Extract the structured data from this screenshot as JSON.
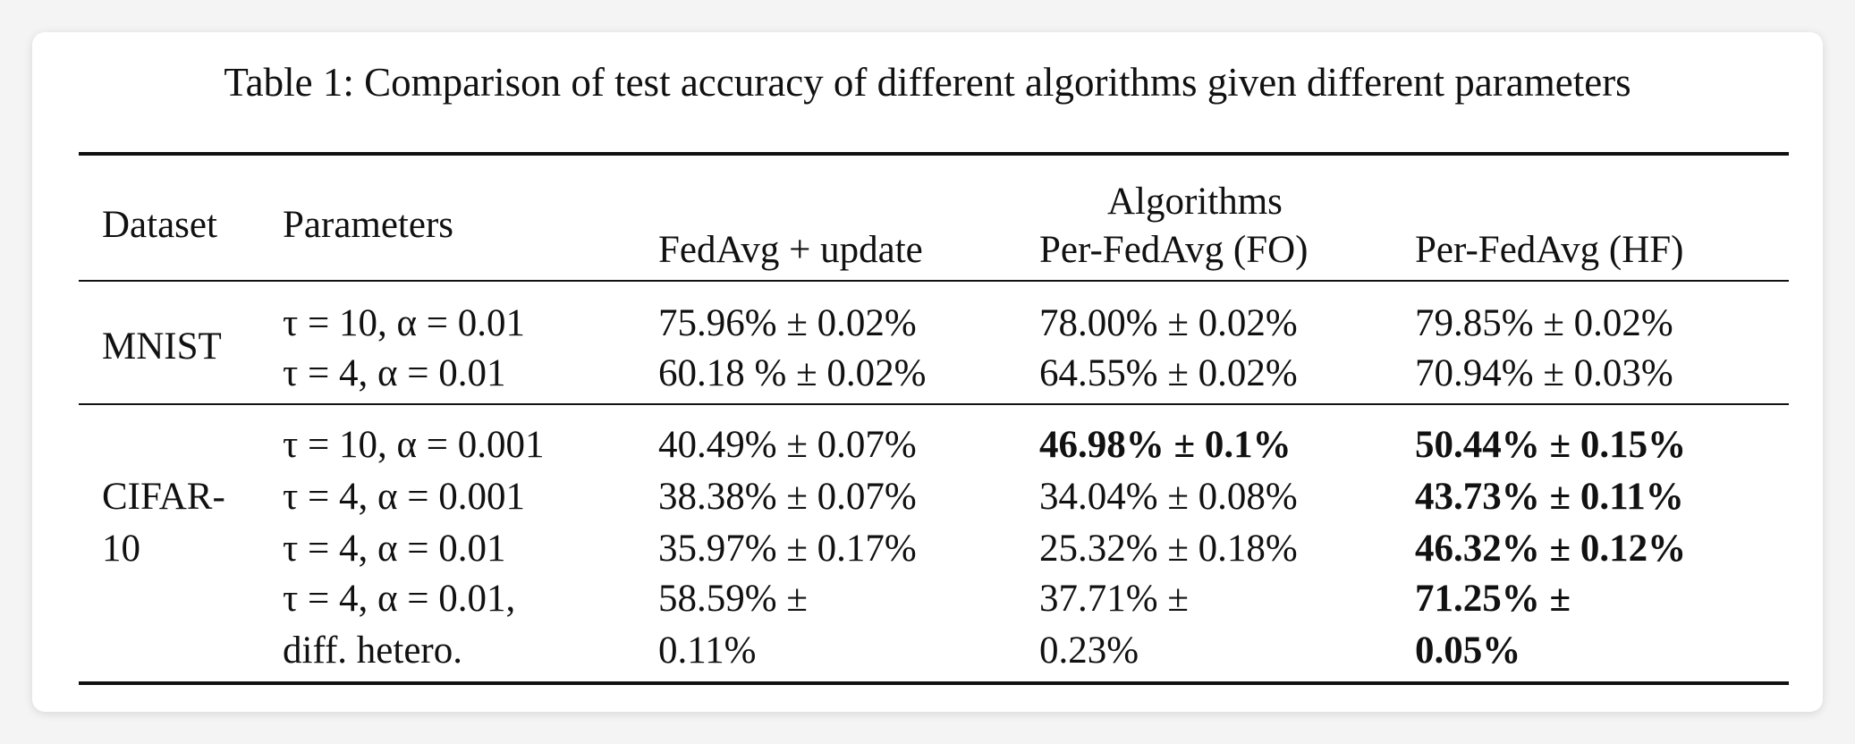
{
  "caption": "Table 1: Comparison of test accuracy of different algorithms given different parameters",
  "header": {
    "dataset": "Dataset",
    "parameters": "Parameters",
    "group": "Algorithms",
    "algorithms": [
      "FedAvg + update",
      "Per-FedAvg (FO)",
      "Per-FedAvg (HF)"
    ]
  },
  "mnist": {
    "dataset_label": "MNIST",
    "rows": [
      {
        "params": "τ = 10, α = 0.01",
        "fedavg": "75.96% ± 0.02%",
        "fo": "78.00% ± 0.02%",
        "hf": "79.85% ± 0.02%"
      },
      {
        "params": "τ = 4, α = 0.01",
        "fedavg": "60.18 % ± 0.02%",
        "fo": "64.55% ± 0.02%",
        "hf": "70.94% ± 0.03%"
      }
    ]
  },
  "cifar": {
    "dataset_label_line1": "CIFAR-",
    "dataset_label_line2": "10",
    "rows": [
      {
        "params": "τ = 10, α = 0.001",
        "fedavg": "40.49% ± 0.07%",
        "fo": "46.98% ± 0.1%",
        "hf": "50.44% ± 0.15%"
      },
      {
        "params": "τ = 4, α = 0.001",
        "fedavg": "38.38% ± 0.07%",
        "fo": "34.04% ± 0.08%",
        "hf": "43.73% ± 0.11%"
      },
      {
        "params": "τ = 4, α = 0.01",
        "fedavg": "35.97% ± 0.17%",
        "fo": "25.32% ± 0.18%",
        "hf": "46.32% ± 0.12%"
      },
      {
        "params_line1": "τ = 4, α = 0.01,",
        "params_line2": "diff. hetero.",
        "fedavg_line1": "58.59% ±",
        "fedavg_line2": "0.11%",
        "fo_line1": "37.71% ±",
        "fo_line2": "0.23%",
        "hf_line1": "71.25% ±",
        "hf_line2": "0.05%"
      }
    ]
  }
}
